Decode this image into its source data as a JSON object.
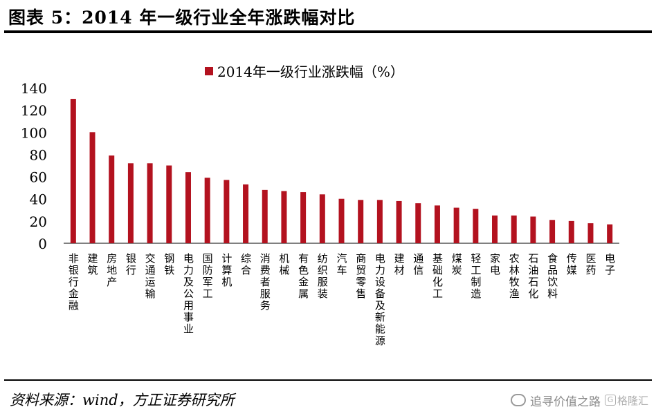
{
  "figure_title": "图表 5：2014 年一级行业全年涨跌幅对比",
  "source_note": "资料来源：wind，方正证券研究所",
  "watermark": {
    "text": "追寻价值之路",
    "brand": "格隆汇",
    "icon": "wechat-icon"
  },
  "colors": {
    "bar": "#b3121f",
    "axis": "#000000"
  },
  "chart_data": {
    "type": "bar",
    "title": "",
    "xlabel": "",
    "ylabel": "",
    "ylim": [
      0,
      140
    ],
    "yticks": [
      0,
      20,
      40,
      60,
      80,
      100,
      120,
      140
    ],
    "grid": false,
    "legend_position": "top-center",
    "categories": [
      "非银行金融",
      "建筑",
      "房地产",
      "银行",
      "交通运输",
      "钢铁",
      "电力及公用事业",
      "国防军工",
      "计算机",
      "综合",
      "消费者服务",
      "机械",
      "有色金属",
      "纺织服装",
      "汽车",
      "商贸零售",
      "电力设备及新能源",
      "建材",
      "通信",
      "基础化工",
      "煤炭",
      "轻工制造",
      "家电",
      "农林牧渔",
      "石油石化",
      "食品饮料",
      "传媒",
      "医药",
      "电子"
    ],
    "series": [
      {
        "name": "2014年一级行业涨跌幅（%）",
        "values": [
          130,
          100,
          79,
          72,
          72,
          70,
          64,
          59,
          57,
          53,
          48,
          47,
          46,
          44,
          40,
          39,
          39,
          38,
          36,
          34,
          32,
          31,
          25,
          25,
          24,
          21,
          20,
          18,
          17
        ]
      }
    ]
  }
}
